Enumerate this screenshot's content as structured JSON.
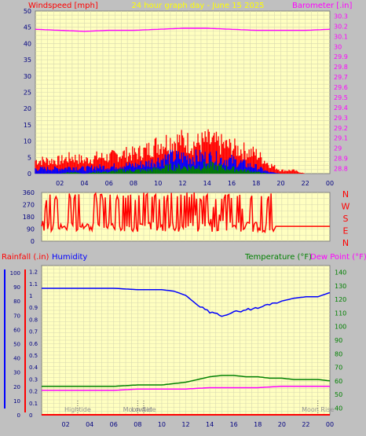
{
  "colors": {
    "windspeed": "#ff0000",
    "gust": "#ff0000",
    "wind_avg": "#0000ff",
    "wind_low": "#008000",
    "barometer": "#ff00ff",
    "direction": "#ff0000",
    "rainfall": "#ff0000",
    "humidity": "#0000ff",
    "temperature": "#008000",
    "dewpoint": "#ff00ff",
    "plot_bg": "#ffffc0",
    "title": "#ffff00",
    "axis_text": "#000080"
  },
  "chart_data": [
    {
      "type": "bar",
      "title": "24 hour graph day - June 15 2025",
      "left_axis_label": "Windspeed [mph]",
      "right_axis_label": "Barometer [.in]",
      "x_tick_labels": [
        "02",
        "04",
        "06",
        "08",
        "10",
        "12",
        "14",
        "16",
        "18",
        "20",
        "22",
        "00"
      ],
      "y_tick_labels": [
        "0",
        "5",
        "10",
        "15",
        "20",
        "25",
        "30",
        "35",
        "40",
        "45",
        "50"
      ],
      "y2_tick_labels": [
        "28.8",
        "28.9",
        "29",
        "29.1",
        "29.2",
        "29.3",
        "29.4",
        "29.5",
        "29.6",
        "29.7",
        "29.8",
        "29.9",
        "30",
        "30.1",
        "30.2",
        "30.3"
      ],
      "xlim": [
        0,
        24
      ],
      "ylim": [
        0,
        50
      ],
      "y2lim": [
        28.75,
        30.35
      ],
      "grid": true,
      "series": [
        {
          "kind": "gust",
          "hours": [
            0,
            1,
            2,
            3,
            4,
            5,
            6,
            7,
            8,
            9,
            10,
            11,
            12,
            13,
            14,
            15,
            16,
            17,
            18,
            19,
            20,
            21,
            22,
            23,
            24
          ],
          "values": [
            4,
            4,
            4,
            5,
            4,
            5,
            5,
            6,
            6,
            7,
            9,
            10,
            10,
            9,
            10,
            9,
            8,
            7,
            6,
            3,
            1,
            1,
            0,
            0,
            0
          ]
        },
        {
          "kind": "average",
          "hours": [
            0,
            1,
            2,
            3,
            4,
            5,
            6,
            7,
            8,
            9,
            10,
            11,
            12,
            13,
            14,
            15,
            16,
            17,
            18,
            19,
            20,
            21,
            22,
            23,
            24
          ],
          "values": [
            1.5,
            1.5,
            1.5,
            2,
            1.5,
            2,
            2,
            2.5,
            2.5,
            3,
            4,
            5,
            5,
            5,
            5,
            4.5,
            4,
            3,
            2,
            0.5,
            0,
            0,
            0,
            0,
            0
          ]
        },
        {
          "kind": "low",
          "hours": [
            0,
            1,
            2,
            3,
            4,
            5,
            6,
            7,
            8,
            9,
            10,
            11,
            12,
            13,
            14,
            15,
            16,
            17,
            18,
            19,
            20,
            21,
            22,
            23,
            24
          ],
          "values": [
            0,
            0,
            0,
            0.5,
            0,
            0.5,
            0.5,
            1,
            1,
            1,
            1.5,
            2,
            2,
            2,
            2.5,
            2,
            1.5,
            1,
            0.5,
            0,
            0,
            0,
            0,
            0,
            0
          ]
        },
        {
          "kind": "barometer",
          "hours": [
            0,
            2,
            4,
            6,
            8,
            10,
            12,
            14,
            16,
            18,
            20,
            22,
            24
          ],
          "values": [
            30.17,
            30.16,
            30.15,
            30.16,
            30.16,
            30.17,
            30.18,
            30.18,
            30.17,
            30.16,
            30.16,
            30.16,
            30.17
          ]
        }
      ]
    },
    {
      "type": "line",
      "title": "",
      "y_tick_labels": [
        "0",
        "90",
        "180",
        "270",
        "360"
      ],
      "direction_labels": [
        "N",
        "W",
        "S",
        "E",
        "N"
      ],
      "xlim": [
        0,
        24
      ],
      "ylim": [
        0,
        360
      ],
      "series": [
        {
          "name": "",
          "hours": [
            0,
            0.5,
            1,
            1.5,
            2,
            2.5,
            3,
            3.5,
            4,
            4.5,
            5,
            5.5,
            6,
            6.5,
            7,
            7.5,
            8,
            8.5,
            9,
            9.5,
            10,
            10.5,
            11,
            11.5,
            12,
            12.5,
            13,
            13.5,
            14,
            14.5,
            15,
            15.5,
            16,
            16.5,
            17,
            17.5,
            18,
            18.5,
            19,
            19.5,
            20,
            21,
            22,
            23,
            24
          ],
          "values": [
            100,
            340,
            120,
            90,
            110,
            300,
            80,
            120,
            100,
            340,
            90,
            110,
            100,
            340,
            120,
            110,
            90,
            130,
            320,
            100,
            110,
            340,
            90,
            120,
            100,
            340,
            90,
            330,
            120,
            340,
            100,
            350,
            120,
            340,
            90,
            330,
            100,
            80,
            20,
            110,
            110,
            110,
            110,
            110,
            110
          ]
        }
      ]
    },
    {
      "type": "line",
      "title": "",
      "left_axis_labels": [
        "Rainfall (.in)",
        "Humidity"
      ],
      "right_axis_labels": [
        "Temperature (°F)",
        "Dew Point (°F)"
      ],
      "x_tick_labels": [
        "02",
        "04",
        "06",
        "08",
        "10",
        "12",
        "14",
        "16",
        "18",
        "20",
        "22",
        "00"
      ],
      "y_left_ticks": [
        "0",
        "10",
        "20",
        "30",
        "40",
        "50",
        "60",
        "70",
        "80",
        "90",
        "100"
      ],
      "y_rain_ticks": [
        "0",
        "0.1",
        "0.2",
        "0.3",
        "0.4",
        "0.5",
        "0.6",
        "0.7",
        "0.8",
        "0.9",
        "1",
        "1.1",
        "1.2"
      ],
      "y_right_ticks": [
        "40",
        "50",
        "60",
        "70",
        "80",
        "90",
        "100",
        "110",
        "120",
        "130",
        "140"
      ],
      "xlim": [
        0,
        24
      ],
      "ylim_humidity": [
        0,
        105
      ],
      "ylim_rain": [
        0,
        1.25
      ],
      "ylim_temp": [
        35,
        145
      ],
      "grid": true,
      "annotations": [
        {
          "text": "Hightide",
          "hour": 3
        },
        {
          "text": "Moon Set",
          "hour": 8
        },
        {
          "text": "Lowtide",
          "hour": 8.5
        },
        {
          "text": "Moon Rise",
          "hour": 23
        }
      ],
      "series": [
        {
          "name": "Humidity",
          "axis": "left",
          "hours": [
            0,
            2,
            4,
            6,
            8,
            10,
            11,
            12,
            13,
            14,
            15,
            16,
            17,
            18,
            19,
            20,
            21,
            22,
            23,
            24
          ],
          "values": [
            89,
            89,
            89,
            89,
            88,
            88,
            87,
            84,
            77,
            72,
            70,
            72,
            74,
            75,
            78,
            80,
            82,
            83,
            83,
            86
          ]
        },
        {
          "name": "Temperature",
          "axis": "right",
          "hours": [
            0,
            2,
            4,
            6,
            8,
            10,
            11,
            12,
            13,
            14,
            15,
            16,
            17,
            18,
            19,
            20,
            21,
            22,
            23,
            24
          ],
          "values": [
            56,
            56,
            56,
            56,
            57,
            57,
            58,
            59,
            61,
            63,
            64,
            64,
            63,
            63,
            62,
            62,
            61,
            61,
            61,
            60
          ]
        },
        {
          "name": "Dew Point",
          "axis": "right",
          "hours": [
            0,
            2,
            4,
            6,
            8,
            10,
            12,
            14,
            16,
            18,
            20,
            22,
            24
          ],
          "values": [
            53,
            53,
            53,
            53,
            54,
            54,
            54,
            55,
            55,
            55,
            56,
            56,
            56
          ]
        },
        {
          "name": "Rainfall",
          "axis": "rain",
          "hours": [
            0,
            24
          ],
          "values": [
            0,
            0
          ]
        }
      ]
    }
  ]
}
